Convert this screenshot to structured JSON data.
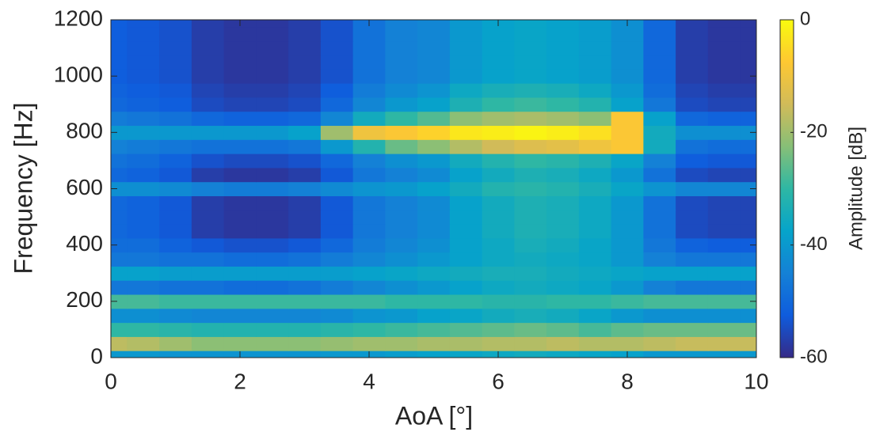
{
  "chart_data": {
    "type": "heatmap",
    "xlabel": "AoA [°]",
    "ylabel": "Frequency [Hz]",
    "colorbar_label": "Amplitude [dB]",
    "x": [
      0,
      0.5,
      1,
      1.5,
      2,
      2.5,
      3,
      3.5,
      4,
      4.5,
      5,
      5.5,
      6,
      6.5,
      7,
      7.5,
      8,
      8.5,
      9,
      9.5,
      10
    ],
    "y": [
      0,
      50,
      100,
      150,
      200,
      250,
      300,
      350,
      400,
      450,
      500,
      550,
      600,
      650,
      700,
      750,
      800,
      850,
      900,
      950,
      1000,
      1050,
      1100,
      1150,
      1200
    ],
    "z": [
      [
        -40,
        -40,
        -41,
        -41,
        -41,
        -41,
        -41,
        -40,
        -40,
        -39,
        -38,
        -37,
        -36,
        -35,
        -36,
        -37,
        -38,
        -40,
        -40,
        -40,
        -40
      ],
      [
        -17,
        -18,
        -20,
        -22,
        -22,
        -22,
        -22,
        -21,
        -20,
        -20,
        -19,
        -19,
        -18,
        -18,
        -17,
        -18,
        -18,
        -17,
        -16,
        -16,
        -16
      ],
      [
        -30,
        -30,
        -31,
        -32,
        -32,
        -32,
        -32,
        -31,
        -30,
        -29,
        -28,
        -27,
        -26,
        -25,
        -26,
        -28,
        -26,
        -25,
        -25,
        -25,
        -25
      ],
      [
        -42,
        -42,
        -43,
        -44,
        -44,
        -44,
        -44,
        -43,
        -41,
        -40,
        -38,
        -37,
        -35,
        -34,
        -35,
        -37,
        -40,
        -42,
        -42,
        -42,
        -42
      ],
      [
        -28,
        -28,
        -29,
        -29,
        -29,
        -29,
        -29,
        -29,
        -29,
        -30,
        -30,
        -30,
        -31,
        -31,
        -30,
        -30,
        -29,
        -28,
        -28,
        -28,
        -28
      ],
      [
        -47,
        -47,
        -48,
        -48,
        -49,
        -49,
        -48,
        -46,
        -44,
        -42,
        -40,
        -38,
        -36,
        -35,
        -36,
        -37,
        -40,
        -45,
        -47,
        -47,
        -47
      ],
      [
        -38,
        -38,
        -39,
        -39,
        -39,
        -39,
        -39,
        -39,
        -38,
        -37,
        -36,
        -35,
        -34,
        -34,
        -35,
        -36,
        -37,
        -38,
        -38,
        -38,
        -38
      ],
      [
        -47,
        -47,
        -48,
        -48,
        -49,
        -49,
        -48,
        -46,
        -44,
        -42,
        -40,
        -38,
        -36,
        -35,
        -36,
        -37,
        -40,
        -45,
        -47,
        -47,
        -47
      ],
      [
        -49,
        -49,
        -51,
        -53,
        -54,
        -54,
        -53,
        -50,
        -46,
        -44,
        -42,
        -38,
        -36,
        -34,
        -35,
        -37,
        -40,
        -47,
        -51,
        -52,
        -52
      ],
      [
        -50,
        -51,
        -53,
        -57,
        -58,
        -58,
        -57,
        -53,
        -47,
        -45,
        -43,
        -38,
        -35,
        -33,
        -34,
        -36,
        -40,
        -48,
        -55,
        -56,
        -56
      ],
      [
        -50,
        -51,
        -53,
        -57,
        -58,
        -58,
        -57,
        -53,
        -47,
        -45,
        -43,
        -38,
        -35,
        -33,
        -34,
        -36,
        -40,
        -48,
        -55,
        -56,
        -56
      ],
      [
        -50,
        -51,
        -53,
        -57,
        -58,
        -58,
        -57,
        -53,
        -47,
        -45,
        -43,
        -38,
        -35,
        -33,
        -34,
        -36,
        -40,
        -48,
        -55,
        -56,
        -56
      ],
      [
        -42,
        -42,
        -43,
        -45,
        -46,
        -46,
        -45,
        -43,
        -41,
        -40,
        -38,
        -35,
        -32,
        -31,
        -32,
        -34,
        -37,
        -41,
        -44,
        -44,
        -44
      ],
      [
        -50,
        -51,
        -53,
        -57,
        -58,
        -58,
        -57,
        -53,
        -47,
        -45,
        -43,
        -38,
        -35,
        -33,
        -34,
        -36,
        -40,
        -48,
        -55,
        -56,
        -56
      ],
      [
        -48,
        -49,
        -51,
        -54,
        -55,
        -55,
        -54,
        -50,
        -45,
        -42,
        -40,
        -35,
        -32,
        -30,
        -31,
        -33,
        -37,
        -45,
        -52,
        -53,
        -53
      ],
      [
        -45,
        -46,
        -47,
        -48,
        -48,
        -48,
        -47,
        -40,
        -32,
        -25,
        -22,
        -18,
        -15,
        -13,
        -12,
        -10,
        -8,
        -35,
        -48,
        -49,
        -49
      ],
      [
        -40,
        -40,
        -40,
        -40,
        -40,
        -40,
        -38,
        -20,
        -10,
        -8,
        -6,
        -3,
        -2,
        -1,
        -2,
        -4,
        -8,
        -35,
        -42,
        -42,
        -42
      ],
      [
        -46,
        -47,
        -48,
        -50,
        -51,
        -51,
        -50,
        -44,
        -35,
        -30,
        -27,
        -22,
        -20,
        -19,
        -20,
        -22,
        -8,
        -38,
        -50,
        -51,
        -51
      ],
      [
        -50,
        -51,
        -52,
        -55,
        -56,
        -56,
        -55,
        -50,
        -44,
        -40,
        -38,
        -33,
        -30,
        -29,
        -30,
        -32,
        -38,
        -47,
        -55,
        -56,
        -56
      ],
      [
        -51,
        -52,
        -53,
        -56,
        -57,
        -57,
        -56,
        -52,
        -46,
        -43,
        -41,
        -36,
        -34,
        -33,
        -34,
        -36,
        -40,
        -49,
        -56,
        -57,
        -57
      ],
      [
        -52,
        -53,
        -54,
        -57,
        -58,
        -58,
        -57,
        -54,
        -48,
        -45,
        -44,
        -40,
        -38,
        -37,
        -38,
        -39,
        -42,
        -50,
        -57,
        -58,
        -58
      ],
      [
        -52,
        -53,
        -54,
        -57,
        -58,
        -58,
        -57,
        -54,
        -48,
        -45,
        -44,
        -40,
        -38,
        -37,
        -38,
        -39,
        -42,
        -50,
        -57,
        -58,
        -58
      ],
      [
        -52,
        -53,
        -54,
        -57,
        -58,
        -58,
        -57,
        -54,
        -48,
        -45,
        -44,
        -40,
        -38,
        -37,
        -38,
        -39,
        -42,
        -50,
        -57,
        -58,
        -58
      ],
      [
        -52,
        -53,
        -54,
        -57,
        -58,
        -58,
        -57,
        -54,
        -48,
        -45,
        -44,
        -40,
        -38,
        -37,
        -38,
        -39,
        -42,
        -50,
        -57,
        -58,
        -58
      ],
      [
        -52,
        -53,
        -54,
        -57,
        -58,
        -58,
        -57,
        -54,
        -48,
        -45,
        -44,
        -40,
        -38,
        -37,
        -38,
        -39,
        -42,
        -50,
        -57,
        -58,
        -58
      ]
    ],
    "xlim": [
      0,
      10
    ],
    "xticks": [
      0,
      2,
      4,
      6,
      8,
      10
    ],
    "ylim": [
      0,
      1200
    ],
    "yticks": [
      0,
      200,
      400,
      600,
      800,
      1000,
      1200
    ],
    "clim": [
      -60,
      0
    ],
    "cticks": [
      -60,
      -40,
      -20,
      0
    ],
    "colormap": [
      "#352a87",
      "#0f5cdd",
      "#1481d6",
      "#06a4ca",
      "#2eb7a4",
      "#87bf77",
      "#d1bb59",
      "#fec832",
      "#f9fb0e"
    ]
  }
}
